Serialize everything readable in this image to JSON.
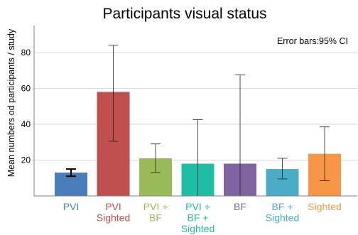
{
  "chart_data": {
    "type": "bar",
    "title": "Participants visual status",
    "xlabel": "",
    "ylabel": "Mean numbers od participants / study",
    "annotation": "Error bars:95% CI",
    "ylim": [
      0,
      95
    ],
    "yticks": [
      20,
      40,
      60,
      80
    ],
    "grid": true,
    "categories": [
      {
        "lines": [
          "PVI"
        ],
        "color": "#4a7ebb"
      },
      {
        "lines": [
          "PVI",
          "Sighted"
        ],
        "color": "#c0504d"
      },
      {
        "lines": [
          "PVI +",
          "BF"
        ],
        "color": "#9bbb59"
      },
      {
        "lines": [
          "PVI +",
          "BF +",
          "Sighted"
        ],
        "color": "#1fbfa5"
      },
      {
        "lines": [
          "BF"
        ],
        "color": "#8064a2"
      },
      {
        "lines": [
          "BF +",
          "Sighted"
        ],
        "color": "#4bacc6"
      },
      {
        "lines": [
          "Sighted"
        ],
        "color": "#f79646"
      }
    ],
    "values": [
      13,
      58,
      21,
      18,
      18,
      15,
      23.5
    ],
    "error_low": [
      11,
      30.5,
      13,
      0,
      0,
      9.5,
      8.5
    ],
    "error_high": [
      15,
      84,
      29,
      42.5,
      67.5,
      21,
      38.5
    ]
  }
}
